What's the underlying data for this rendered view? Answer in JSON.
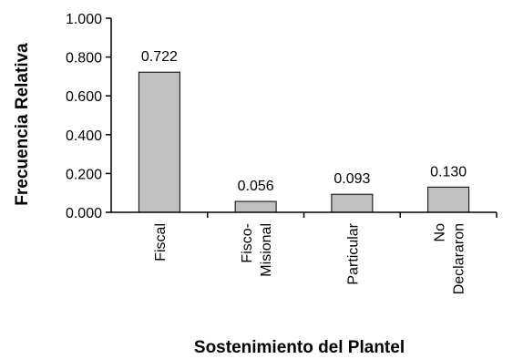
{
  "chart_data": {
    "type": "bar",
    "categories": [
      [
        "Fiscal"
      ],
      [
        "Fisco-",
        "Misional"
      ],
      [
        "Particular"
      ],
      [
        "No",
        "Declararon"
      ]
    ],
    "values": [
      0.722,
      0.056,
      0.093,
      0.13
    ],
    "value_labels": [
      "0.722",
      "0.056",
      "0.093",
      "0.130"
    ],
    "title": "",
    "xlabel": "Sostenimiento del Plantel",
    "ylabel": "Frecuencia Relativa",
    "ylim": [
      0,
      1.0
    ],
    "yticks": [
      0,
      0.2,
      0.4,
      0.6,
      0.8,
      1.0
    ],
    "ytick_labels": [
      "0.000",
      "0.200",
      "0.400",
      "0.600",
      "0.800",
      "1.000"
    ],
    "bar_color": "#c0c0c0",
    "grid": false,
    "legend": "none"
  }
}
